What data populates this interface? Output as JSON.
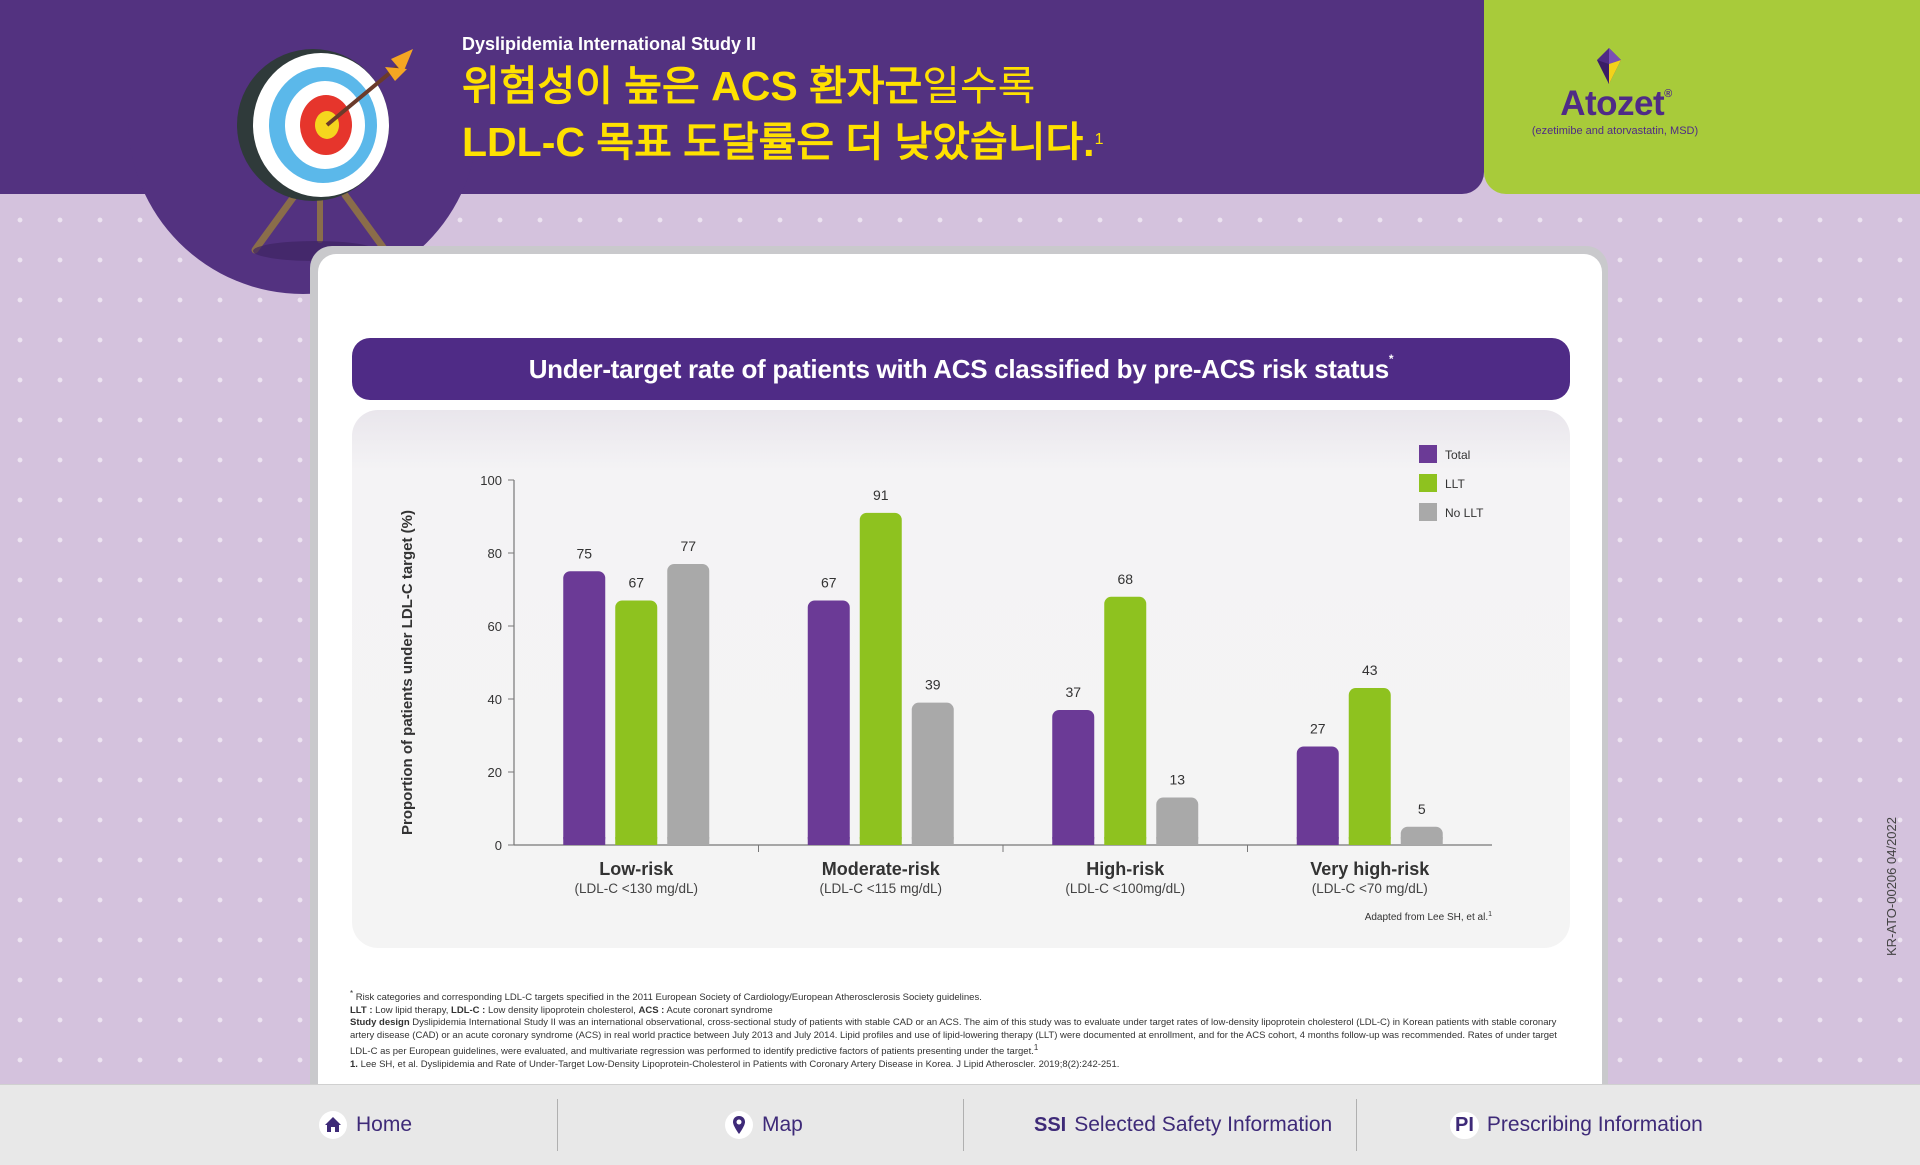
{
  "header": {
    "study_label": "Dyslipidemia International Study II",
    "headline_line1_bold": "위험성이 높은 ACS 환자군",
    "headline_line1_light": "일수록",
    "headline_line2": "LDL-C 목표 도달률은 더 낮았습니다.",
    "headline_ref": "1"
  },
  "brand": {
    "name": "Atozet",
    "registered": "®",
    "subtitle": "(ezetimibe and atorvastatin, MSD)"
  },
  "chart_title": "Under-target rate of patients with ACS classified by pre-ACS risk status",
  "chart_title_mark": "*",
  "chart_data": {
    "type": "bar",
    "ylabel": "Proportion of patients under LDL-C target (%)",
    "ylim": [
      0,
      100
    ],
    "yticks": [
      0,
      20,
      40,
      60,
      80,
      100
    ],
    "categories": [
      "Low-risk",
      "Moderate-risk",
      "High-risk",
      "Very high-risk"
    ],
    "category_sublabels": [
      "(LDL-C <130 mg/dL)",
      "(LDL-C <115 mg/dL)",
      "(LDL-C <100mg/dL)",
      "(LDL-C <70 mg/dL)"
    ],
    "series": [
      {
        "name": "Total",
        "color": "#6b3a96",
        "values": [
          75,
          67,
          37,
          27
        ]
      },
      {
        "name": "LLT",
        "color": "#8ec21f",
        "values": [
          67,
          91,
          68,
          43
        ]
      },
      {
        "name": "No LLT",
        "color": "#a9a9a9",
        "values": [
          77,
          39,
          13,
          5
        ]
      }
    ],
    "legend_position": "top-right",
    "grid": false,
    "source_note": "Adapted from Lee SH, et al.",
    "source_ref": "1"
  },
  "footnotes": {
    "asterisk_note": "Risk categories and corresponding LDL-C targets specified in the 2011 European Society of Cardiology/European Atherosclerosis Society guidelines.",
    "abbr_llt_term": "LLT :",
    "abbr_llt_def": "Low lipid therapy,",
    "abbr_ldlc_term": "LDL-C :",
    "abbr_ldlc_def": "Low density lipoprotein cholesterol,",
    "abbr_acs_term": "ACS :",
    "abbr_acs_def": "Acute coronart syndrome",
    "study_design_term": "Study design",
    "study_design_text": "Dyslipidemia International Study II was an international observational, cross-sectional study of patients with stable CAD or an ACS. The aim of this study was to evaluate under target rates of low-density lipoprotein cholesterol (LDL-C) in Korean patients with stable coronary artery disease (CAD) or an acute coronary syndrome (ACS) in real world practice between July 2013 and July 2014. Lipid profiles and use of lipid-lowering therapy (LLT) were documented at enrollment, and for the ACS cohort, 4 months follow-up was recommended. Rates of under target LDL-C as per European guidelines, were evaluated, and multivariate regression was performed to identify predictive factors of patients presenting under the target.",
    "study_design_ref": "1",
    "reference_num": "1.",
    "reference_text": "Lee SH, et al. Dyslipidemia and Rate of Under-Target Low-Density Lipoprotein-Cholesterol in Patients with Coronary Artery Disease in Korea. J Lipid Atheroscler. 2019;8(2):242-251."
  },
  "doc_code": "KR-ATO-00206 04/2022",
  "nav": {
    "home": "Home",
    "map": "Map",
    "ssi_abbr": "SSI",
    "ssi_label": "Selected Safety Information",
    "pi_abbr": "PI",
    "pi_label": "Prescribing Information"
  },
  "colors": {
    "header_purple": "#533280",
    "headline_yellow": "#ffe100",
    "brand_green": "#a8cb3a",
    "title_bar_purple": "#4f2b86"
  }
}
